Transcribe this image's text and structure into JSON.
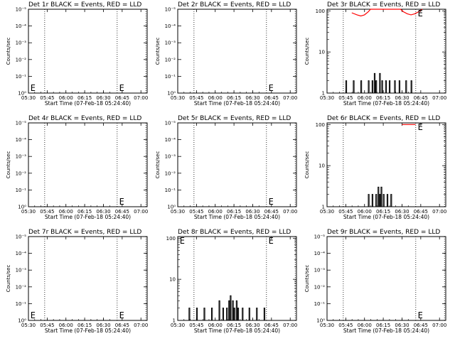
{
  "chart_data": {
    "type": "line",
    "x_tick_labels": [
      "05:30",
      "05:45",
      "06:00",
      "06:15",
      "06:30",
      "06:45",
      "07:00"
    ],
    "x_range": [
      "05:30",
      "07:05"
    ],
    "xlabel": "Start Time (07-Feb-18 05:24:40)",
    "ylabel": "Counts/sec",
    "marker_text": "E",
    "dotted_lines": [
      "05:43",
      "06:41",
      "07:04"
    ],
    "colors": {
      "events": "#000000",
      "lld": "#ff0000"
    },
    "panels": [
      {
        "title": "Det 1r BLACK = Events, RED = LLD",
        "scale": "sci",
        "y_tick_labels": [
          "10⁰",
          "10⁻¹",
          "10⁻²",
          "10⁻³",
          "10⁻⁴",
          "10⁻⁵"
        ],
        "ylabel_shown": true,
        "markers": [
          {
            "x": "05:31",
            "pos": "bottom"
          },
          {
            "x": "06:42",
            "pos": "bottom"
          }
        ],
        "events": [],
        "lld": []
      },
      {
        "title": "Det 2r BLACK = Events, RED = LLD",
        "scale": "sci",
        "y_tick_labels": [
          "10⁰",
          "10⁻¹",
          "10⁻²",
          "10⁻³",
          "10⁻⁴",
          "10⁻⁵"
        ],
        "ylabel_shown": true,
        "markers": [
          {
            "x": "06:42",
            "pos": "bottom"
          }
        ],
        "events": [],
        "lld": []
      },
      {
        "title": "Det 3r BLACK = Events, RED = LLD",
        "scale": "log",
        "y_tick_labels": [
          "1",
          "10",
          "100"
        ],
        "ylabel_shown": true,
        "markers": [
          {
            "x": "06:42",
            "pos": "top"
          }
        ],
        "events": [
          [
            5.7,
            1
          ],
          [
            5.75,
            2
          ],
          [
            5.8,
            1
          ],
          [
            5.85,
            2
          ],
          [
            5.9,
            1
          ],
          [
            5.95,
            2
          ],
          [
            6.0,
            1
          ],
          [
            6.05,
            2
          ],
          [
            6.08,
            1
          ],
          [
            6.1,
            2
          ],
          [
            6.13,
            3
          ],
          [
            6.15,
            2
          ],
          [
            6.18,
            1
          ],
          [
            6.2,
            3
          ],
          [
            6.23,
            2
          ],
          [
            6.25,
            1
          ],
          [
            6.28,
            2
          ],
          [
            6.3,
            1
          ],
          [
            6.33,
            2
          ],
          [
            6.37,
            1
          ],
          [
            6.4,
            2
          ],
          [
            6.43,
            1
          ],
          [
            6.46,
            2
          ],
          [
            6.5,
            1
          ],
          [
            6.55,
            2
          ],
          [
            6.6,
            1
          ],
          [
            6.62,
            2
          ],
          [
            6.65,
            1
          ]
        ],
        "lld": [
          [
            5.83,
            90
          ],
          [
            5.9,
            80
          ],
          [
            5.95,
            75
          ],
          [
            6.0,
            80
          ],
          [
            6.05,
            95
          ],
          [
            6.08,
            110
          ],
          [
            6.48,
            110
          ],
          [
            6.52,
            95
          ],
          [
            6.57,
            85
          ],
          [
            6.62,
            80
          ],
          [
            6.67,
            85
          ],
          [
            6.72,
            95
          ],
          [
            6.77,
            110
          ]
        ]
      },
      {
        "title": "Det 4r BLACK = Events, RED = LLD",
        "scale": "sci",
        "y_tick_labels": [
          "10⁰",
          "10⁻¹",
          "10⁻²",
          "10⁻³",
          "10⁻⁴",
          "10⁻⁵"
        ],
        "ylabel_shown": true,
        "markers": [
          {
            "x": "06:42",
            "pos": "bottom"
          }
        ],
        "events": [],
        "lld": []
      },
      {
        "title": "Det 5r BLACK = Events, RED = LLD",
        "scale": "sci",
        "y_tick_labels": [
          "10⁰",
          "10⁻¹",
          "10⁻²",
          "10⁻³",
          "10⁻⁴",
          "10⁻⁵"
        ],
        "ylabel_shown": true,
        "markers": [
          {
            "x": "06:42",
            "pos": "bottom"
          }
        ],
        "events": [],
        "lld": []
      },
      {
        "title": "Det 6r BLACK = Events, RED = LLD",
        "scale": "log",
        "y_tick_labels": [
          "1",
          "10",
          "100"
        ],
        "ylabel_shown": true,
        "markers": [
          {
            "x": "06:42",
            "pos": "top"
          }
        ],
        "events": [
          [
            6.0,
            1
          ],
          [
            6.05,
            2
          ],
          [
            6.08,
            1
          ],
          [
            6.1,
            2
          ],
          [
            6.13,
            1
          ],
          [
            6.15,
            2
          ],
          [
            6.18,
            3
          ],
          [
            6.2,
            2
          ],
          [
            6.22,
            3
          ],
          [
            6.25,
            2
          ],
          [
            6.27,
            1
          ],
          [
            6.3,
            2
          ],
          [
            6.33,
            1
          ],
          [
            6.35,
            2
          ],
          [
            6.38,
            1
          ]
        ],
        "lld": [
          [
            6.5,
            100
          ],
          [
            6.6,
            100
          ],
          [
            6.68,
            100
          ]
        ]
      },
      {
        "title": "Det 7r BLACK = Events, RED = LLD",
        "scale": "sci",
        "y_tick_labels": [
          "10⁰",
          "10⁻¹",
          "10⁻²",
          "10⁻³",
          "10⁻⁴",
          "10⁻⁵"
        ],
        "ylabel_shown": true,
        "markers": [
          {
            "x": "05:31",
            "pos": "bottom"
          },
          {
            "x": "06:42",
            "pos": "bottom"
          }
        ],
        "events": [],
        "lld": []
      },
      {
        "title": "Det 8r BLACK = Events, RED = LLD",
        "scale": "log",
        "y_tick_labels": [
          "1",
          "10",
          "100"
        ],
        "ylabel_shown": false,
        "markers": [
          {
            "x": "05:31",
            "pos": "top"
          },
          {
            "x": "06:42",
            "pos": "top"
          }
        ],
        "events": [
          [
            5.6,
            1
          ],
          [
            5.65,
            2
          ],
          [
            5.7,
            1
          ],
          [
            5.75,
            2
          ],
          [
            5.8,
            1
          ],
          [
            5.85,
            2
          ],
          [
            5.9,
            1
          ],
          [
            5.95,
            2
          ],
          [
            6.0,
            1
          ],
          [
            6.05,
            3
          ],
          [
            6.1,
            2
          ],
          [
            6.13,
            1
          ],
          [
            6.15,
            2
          ],
          [
            6.18,
            3
          ],
          [
            6.2,
            4
          ],
          [
            6.23,
            3
          ],
          [
            6.25,
            2
          ],
          [
            6.28,
            3
          ],
          [
            6.3,
            2
          ],
          [
            6.33,
            1
          ],
          [
            6.36,
            2
          ],
          [
            6.4,
            1
          ],
          [
            6.45,
            2
          ],
          [
            6.5,
            1
          ],
          [
            6.55,
            2
          ],
          [
            6.6,
            1
          ],
          [
            6.65,
            2
          ]
        ],
        "lld": []
      },
      {
        "title": "Det 9r BLACK = Events, RED = LLD",
        "scale": "sci",
        "y_tick_labels": [
          "10⁰",
          "10⁻¹",
          "10⁻²",
          "10⁻³",
          "10⁻⁴",
          "10⁻⁵"
        ],
        "ylabel_shown": true,
        "markers": [
          {
            "x": "06:42",
            "pos": "bottom"
          }
        ],
        "events": [],
        "lld": []
      }
    ]
  }
}
